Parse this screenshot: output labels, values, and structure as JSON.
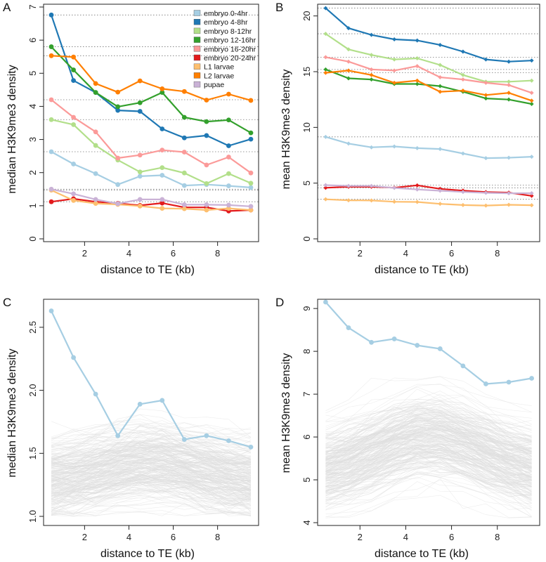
{
  "legend": [
    "embryo 0-4hr",
    "embryo 4-8hr",
    "embryo 8-12hr",
    "embryo 12-16hr",
    "embryo 16-20hr",
    "embryo 20-24hr",
    "L1 larvae",
    "L2 larvae",
    "pupae"
  ],
  "colors": [
    "#a6cee3",
    "#1f78b4",
    "#b2df8a",
    "#33a02c",
    "#fb9a99",
    "#e31a1c",
    "#fdbf6f",
    "#ff7f00",
    "#cab2d6"
  ],
  "grey_color": "#dedede",
  "chart_data": [
    {
      "panel": "A",
      "type": "line",
      "xlabel": "distance to TE (kb)",
      "ylabel": "median H3K9me3 density",
      "xlim": [
        0.5,
        9.5
      ],
      "ylim": [
        0,
        7
      ],
      "xticks": [
        2,
        4,
        6,
        8
      ],
      "yticks": [
        0,
        1,
        2,
        3,
        4,
        5,
        6,
        7
      ],
      "marker": "circle",
      "legend_position": "top-right",
      "x": [
        0.5,
        1.5,
        2.5,
        3.5,
        4.5,
        5.5,
        6.5,
        7.5,
        8.5,
        9.5
      ],
      "series": [
        {
          "name": "embryo 0-4hr",
          "values": [
            2.63,
            2.26,
            1.97,
            1.64,
            1.89,
            1.92,
            1.61,
            1.64,
            1.6,
            1.55
          ]
        },
        {
          "name": "embryo 4-8hr",
          "values": [
            6.76,
            4.78,
            4.42,
            3.88,
            3.85,
            3.32,
            3.05,
            3.12,
            2.81,
            3.01
          ]
        },
        {
          "name": "embryo 8-12hr",
          "values": [
            3.6,
            3.45,
            2.82,
            2.38,
            2.02,
            2.15,
            1.99,
            1.67,
            1.97,
            1.68
          ]
        },
        {
          "name": "embryo 12-16hr",
          "values": [
            5.8,
            5.1,
            4.42,
            3.99,
            4.11,
            4.42,
            3.67,
            3.54,
            3.59,
            3.2
          ]
        },
        {
          "name": "embryo 16-20hr",
          "values": [
            4.2,
            3.67,
            3.23,
            2.44,
            2.53,
            2.68,
            2.62,
            2.23,
            2.47,
            1.99
          ]
        },
        {
          "name": "embryo 20-24hr",
          "values": [
            1.12,
            1.21,
            1.12,
            1.07,
            1.01,
            1.08,
            0.95,
            0.95,
            0.84,
            0.87
          ]
        },
        {
          "name": "L1 larvae",
          "values": [
            1.47,
            1.16,
            1.07,
            1.04,
            0.99,
            0.92,
            0.91,
            0.87,
            0.92,
            0.87
          ]
        },
        {
          "name": "L2 larvae",
          "values": [
            5.53,
            5.49,
            4.69,
            4.43,
            4.77,
            4.53,
            4.45,
            4.19,
            4.37,
            4.18
          ]
        },
        {
          "name": "pupae",
          "values": [
            1.5,
            1.36,
            1.19,
            1.06,
            1.19,
            1.19,
            1.03,
            1.03,
            1.02,
            0.98
          ]
        }
      ],
      "reference_lines": [
        6.76,
        5.8,
        5.53,
        4.2,
        3.6,
        2.63,
        1.5,
        1.47,
        1.12
      ]
    },
    {
      "panel": "B",
      "type": "line",
      "xlabel": "distance to TE (kb)",
      "ylabel": "mean H3K9me3 density",
      "xlim": [
        0.5,
        9.5
      ],
      "ylim": [
        0,
        20.8
      ],
      "xticks": [
        2,
        4,
        6,
        8
      ],
      "yticks": [
        0,
        5,
        10,
        15,
        20
      ],
      "marker": "diamond",
      "x": [
        0.5,
        1.5,
        2.5,
        3.5,
        4.5,
        5.5,
        6.5,
        7.5,
        8.5,
        9.5
      ],
      "series": [
        {
          "name": "embryo 0-4hr",
          "values": [
            9.15,
            8.55,
            8.21,
            8.29,
            8.14,
            8.06,
            7.66,
            7.24,
            7.28,
            7.37
          ]
        },
        {
          "name": "embryo 4-8hr",
          "values": [
            20.7,
            18.9,
            18.3,
            17.9,
            17.8,
            17.4,
            16.8,
            16.1,
            15.9,
            16
          ]
        },
        {
          "name": "embryo 8-12hr",
          "values": [
            18.4,
            17,
            16.5,
            16.1,
            16.2,
            15.6,
            14.7,
            14.1,
            14.1,
            14.2
          ]
        },
        {
          "name": "embryo 12-16hr",
          "values": [
            15.2,
            14.4,
            14.3,
            13.9,
            13.9,
            13.7,
            13.2,
            12.6,
            12.5,
            12.1
          ]
        },
        {
          "name": "embryo 16-20hr",
          "values": [
            16.3,
            15.9,
            15.2,
            15.1,
            15.5,
            14.5,
            14.3,
            14,
            13.8,
            13.1
          ]
        },
        {
          "name": "embryo 20-24hr",
          "values": [
            4.58,
            4.67,
            4.67,
            4.59,
            4.8,
            4.49,
            4.33,
            4.2,
            4.15,
            3.86
          ]
        },
        {
          "name": "L1 larvae",
          "values": [
            3.55,
            3.46,
            3.44,
            3.33,
            3.31,
            3.14,
            3.03,
            2.99,
            3.06,
            3.02
          ]
        },
        {
          "name": "L2 larvae",
          "values": [
            14.9,
            15.1,
            14.7,
            14,
            14.2,
            13.2,
            13.3,
            12.9,
            13.1,
            12.4
          ]
        },
        {
          "name": "pupae",
          "values": [
            4.82,
            4.75,
            4.75,
            4.57,
            4.43,
            4.32,
            4.21,
            4.13,
            4.09,
            4.1
          ]
        }
      ],
      "reference_lines": [
        20.7,
        18.4,
        16.3,
        15.2,
        14.9,
        9.15,
        4.82,
        4.58,
        3.55
      ]
    },
    {
      "panel": "C",
      "type": "line",
      "xlabel": "distance to TE (kb)",
      "ylabel": "median H3K9me3 density",
      "xlim": [
        0.5,
        9.5
      ],
      "ylim": [
        0.95,
        2.7
      ],
      "xticks": [
        2,
        4,
        6,
        8
      ],
      "yticks": [
        1.0,
        1.5,
        2.0,
        2.5
      ],
      "ytick_labels": [
        "1.0",
        "1.5",
        "2.0",
        "2.5"
      ],
      "marker": "circle",
      "x": [
        0.5,
        1.5,
        2.5,
        3.5,
        4.5,
        5.5,
        6.5,
        7.5,
        8.5,
        9.5
      ],
      "series": [
        {
          "name": "embryo 0-4hr",
          "values": [
            2.63,
            2.26,
            1.97,
            1.64,
            1.89,
            1.92,
            1.61,
            1.64,
            1.6,
            1.55
          ]
        }
      ],
      "background": {
        "description": "grey random background profiles",
        "center": 1.27,
        "peak": 1.42,
        "spread": 0.16,
        "lower_bound": 1.0
      }
    },
    {
      "panel": "D",
      "type": "line",
      "xlabel": "distance to TE (kb)",
      "ylabel": "mean H3K9me3 density",
      "xlim": [
        0.5,
        9.5
      ],
      "ylim": [
        4,
        9.15
      ],
      "xticks": [
        2,
        4,
        6,
        8
      ],
      "yticks": [
        4,
        5,
        6,
        7,
        8,
        9
      ],
      "marker": "circle",
      "x": [
        0.5,
        1.5,
        2.5,
        3.5,
        4.5,
        5.5,
        6.5,
        7.5,
        8.5,
        9.5
      ],
      "series": [
        {
          "name": "embryo 0-4hr",
          "values": [
            9.15,
            8.55,
            8.21,
            8.29,
            8.14,
            8.06,
            7.66,
            7.24,
            7.28,
            7.37
          ]
        }
      ],
      "background": {
        "description": "grey random background profiles",
        "center": 5.2,
        "peak": 6.1,
        "spread": 0.45,
        "lower_bound": 4.1
      }
    }
  ],
  "panel_letters": [
    "A",
    "B",
    "C",
    "D"
  ]
}
